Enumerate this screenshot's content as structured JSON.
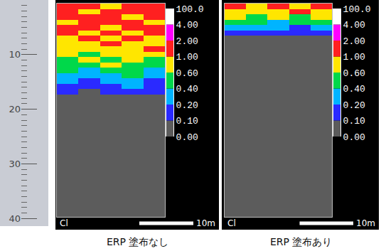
{
  "ruler": {
    "ylim": [
      0,
      41
    ],
    "yticks": [
      10,
      20,
      30,
      40
    ]
  },
  "element": "Cl",
  "scale_bar": {
    "length": 10,
    "label": "10m"
  },
  "colorbar": {
    "range": [
      0,
      100
    ],
    "ticks": [
      {
        "value": 0,
        "label": "0.00"
      },
      {
        "value": 0.1,
        "label": "0.10"
      },
      {
        "value": 0.2,
        "label": "0.20"
      },
      {
        "value": 0.4,
        "label": "0.40"
      },
      {
        "value": 0.6,
        "label": "0.60"
      },
      {
        "value": 1,
        "label": "1.00"
      },
      {
        "value": 2,
        "label": "2.00"
      },
      {
        "value": 4,
        "label": "4.00"
      },
      {
        "value": 100,
        "label": "100.0"
      }
    ],
    "colors": [
      "#5c5c5c",
      "#2a2aff",
      "#00b4ff",
      "#00d84a",
      "#ffe600",
      "#ff2020",
      "#ff00ff",
      "#ffffff"
    ]
  },
  "chart_data": [
    {
      "type": "heatmap",
      "title": "ERP 塗布なし",
      "tick_labels": false,
      "xlim": [
        0,
        20
      ],
      "ylim": [
        0,
        40
      ],
      "x": [
        2,
        6,
        10,
        14,
        18
      ],
      "y": [
        0.5,
        1.5,
        2.5,
        3.5,
        4.5,
        5.5,
        6.5,
        7.5,
        8.5,
        9.5,
        10.5,
        11.5,
        12.5,
        13.5,
        14.5,
        15.5,
        16.5,
        17.5,
        18.5,
        19.5,
        20.5,
        21.5,
        22.5,
        23.5,
        24.5,
        25.5,
        26.5,
        27.5,
        28.5,
        29.5,
        30.5,
        31.5,
        32.5,
        33.5,
        34.5,
        35.5,
        36.5,
        37.5,
        38.5,
        39.5
      ],
      "cells": [
        [
          1.5,
          1.5,
          0.8,
          1.5,
          1.5
        ],
        [
          1.5,
          0.8,
          1.5,
          1.5,
          1.5
        ],
        [
          1.5,
          1.5,
          1.5,
          0.8,
          1.5
        ],
        [
          0.8,
          1.5,
          1.5,
          1.5,
          0.8
        ],
        [
          1.5,
          1.5,
          0.8,
          1.5,
          1.5
        ],
        [
          1.5,
          0.8,
          1.5,
          0.8,
          1.5
        ],
        [
          0.8,
          1.5,
          0.8,
          1.5,
          0.8
        ],
        [
          0.8,
          0.8,
          1.5,
          0.8,
          0.8
        ],
        [
          0.8,
          0.8,
          0.8,
          0.8,
          1.5
        ],
        [
          0.8,
          0.5,
          0.8,
          0.8,
          0.8
        ],
        [
          0.5,
          0.8,
          0.5,
          0.8,
          0.5
        ],
        [
          0.5,
          0.5,
          0.8,
          0.5,
          0.5
        ],
        [
          0.5,
          0.3,
          0.5,
          0.5,
          0.3
        ],
        [
          0.3,
          0.3,
          0.3,
          0.5,
          0.3
        ],
        [
          0.3,
          0.15,
          0.3,
          0.3,
          0.15
        ],
        [
          0.15,
          0.15,
          0.15,
          0.3,
          0.15
        ],
        [
          0.15,
          0.05,
          0.15,
          0.15,
          0.15
        ],
        [
          0.05,
          0.05,
          0.05,
          0.05,
          0.05
        ],
        [
          0.05,
          0.05,
          0.05,
          0.05,
          0.05
        ],
        [
          0.05,
          0.05,
          0.05,
          0.05,
          0.05
        ],
        [
          0.05,
          0.05,
          0.05,
          0.05,
          0.05
        ],
        [
          0.05,
          0.05,
          0.05,
          0.05,
          0.05
        ],
        [
          0.05,
          0.05,
          0.05,
          0.05,
          0.05
        ],
        [
          0.05,
          0.05,
          0.05,
          0.05,
          0.05
        ],
        [
          0.05,
          0.05,
          0.05,
          0.05,
          0.05
        ],
        [
          0.05,
          0.05,
          0.05,
          0.05,
          0.05
        ],
        [
          0.05,
          0.05,
          0.05,
          0.05,
          0.05
        ],
        [
          0.05,
          0.05,
          0.05,
          0.05,
          0.05
        ],
        [
          0.05,
          0.05,
          0.05,
          0.05,
          0.05
        ],
        [
          0.05,
          0.05,
          0.05,
          0.05,
          0.05
        ],
        [
          0.05,
          0.05,
          0.05,
          0.05,
          0.05
        ],
        [
          0.05,
          0.05,
          0.05,
          0.05,
          0.05
        ],
        [
          0.05,
          0.05,
          0.05,
          0.05,
          0.05
        ],
        [
          0.05,
          0.05,
          0.05,
          0.05,
          0.05
        ],
        [
          0.05,
          0.05,
          0.05,
          0.05,
          0.05
        ],
        [
          0.05,
          0.05,
          0.05,
          0.05,
          0.05
        ],
        [
          0.05,
          0.05,
          0.05,
          0.05,
          0.05
        ],
        [
          0.05,
          0.05,
          0.05,
          0.05,
          0.05
        ],
        [
          0.05,
          0.05,
          0.05,
          0.05,
          0.05
        ],
        [
          0.05,
          0.05,
          0.05,
          0.05,
          0.05
        ]
      ]
    },
    {
      "type": "heatmap",
      "title": "ERP 塗布あり",
      "tick_labels": false,
      "xlim": [
        0,
        20
      ],
      "ylim": [
        0,
        40
      ],
      "x": [
        2,
        6,
        10,
        14,
        18
      ],
      "y": [
        0.5,
        1.5,
        2.5,
        3.5,
        4.5,
        5.5,
        6.5,
        7.5,
        8.5,
        9.5,
        10.5,
        11.5,
        12.5,
        13.5,
        14.5,
        15.5,
        16.5,
        17.5,
        18.5,
        19.5,
        20.5,
        21.5,
        22.5,
        23.5,
        24.5,
        25.5,
        26.5,
        27.5,
        28.5,
        29.5,
        30.5,
        31.5,
        32.5,
        33.5,
        34.5,
        35.5,
        36.5,
        37.5,
        38.5,
        39.5
      ],
      "cells": [
        [
          1.5,
          0.8,
          1.5,
          0.8,
          1.5
        ],
        [
          0.8,
          0.8,
          0.8,
          1.5,
          0.8
        ],
        [
          0.8,
          0.5,
          0.8,
          0.5,
          0.8
        ],
        [
          0.5,
          0.5,
          0.3,
          0.5,
          0.5
        ],
        [
          0.3,
          0.3,
          0.3,
          0.15,
          0.3
        ],
        [
          0.15,
          0.15,
          0.15,
          0.15,
          0.15
        ],
        [
          0.05,
          0.05,
          0.05,
          0.05,
          0.05
        ],
        [
          0.05,
          0.05,
          0.05,
          0.05,
          0.05
        ],
        [
          0.05,
          0.05,
          0.05,
          0.05,
          0.05
        ],
        [
          0.05,
          0.05,
          0.05,
          0.05,
          0.05
        ],
        [
          0.05,
          0.05,
          0.05,
          0.05,
          0.05
        ],
        [
          0.05,
          0.05,
          0.05,
          0.05,
          0.05
        ],
        [
          0.05,
          0.05,
          0.05,
          0.05,
          0.05
        ],
        [
          0.05,
          0.05,
          0.05,
          0.05,
          0.05
        ],
        [
          0.05,
          0.05,
          0.05,
          0.05,
          0.05
        ],
        [
          0.05,
          0.05,
          0.05,
          0.05,
          0.05
        ],
        [
          0.05,
          0.05,
          0.05,
          0.05,
          0.05
        ],
        [
          0.05,
          0.05,
          0.05,
          0.05,
          0.05
        ],
        [
          0.05,
          0.05,
          0.05,
          0.05,
          0.05
        ],
        [
          0.05,
          0.05,
          0.05,
          0.05,
          0.05
        ],
        [
          0.05,
          0.05,
          0.05,
          0.05,
          0.05
        ],
        [
          0.05,
          0.05,
          0.05,
          0.05,
          0.05
        ],
        [
          0.05,
          0.05,
          0.05,
          0.05,
          0.05
        ],
        [
          0.05,
          0.05,
          0.05,
          0.05,
          0.05
        ],
        [
          0.05,
          0.05,
          0.05,
          0.05,
          0.05
        ],
        [
          0.05,
          0.05,
          0.05,
          0.05,
          0.05
        ],
        [
          0.05,
          0.05,
          0.05,
          0.05,
          0.05
        ],
        [
          0.05,
          0.05,
          0.05,
          0.05,
          0.05
        ],
        [
          0.05,
          0.05,
          0.05,
          0.05,
          0.05
        ],
        [
          0.05,
          0.05,
          0.05,
          0.05,
          0.05
        ],
        [
          0.05,
          0.05,
          0.05,
          0.05,
          0.05
        ],
        [
          0.05,
          0.05,
          0.05,
          0.05,
          0.05
        ],
        [
          0.05,
          0.05,
          0.05,
          0.05,
          0.05
        ],
        [
          0.05,
          0.05,
          0.05,
          0.05,
          0.05
        ],
        [
          0.05,
          0.05,
          0.05,
          0.05,
          0.05
        ],
        [
          0.05,
          0.05,
          0.05,
          0.05,
          0.05
        ],
        [
          0.05,
          0.05,
          0.05,
          0.05,
          0.05
        ],
        [
          0.05,
          0.05,
          0.05,
          0.05,
          0.05
        ],
        [
          0.05,
          0.05,
          0.05,
          0.05,
          0.05
        ],
        [
          0.05,
          0.05,
          0.05,
          0.05,
          0.05
        ]
      ]
    }
  ]
}
